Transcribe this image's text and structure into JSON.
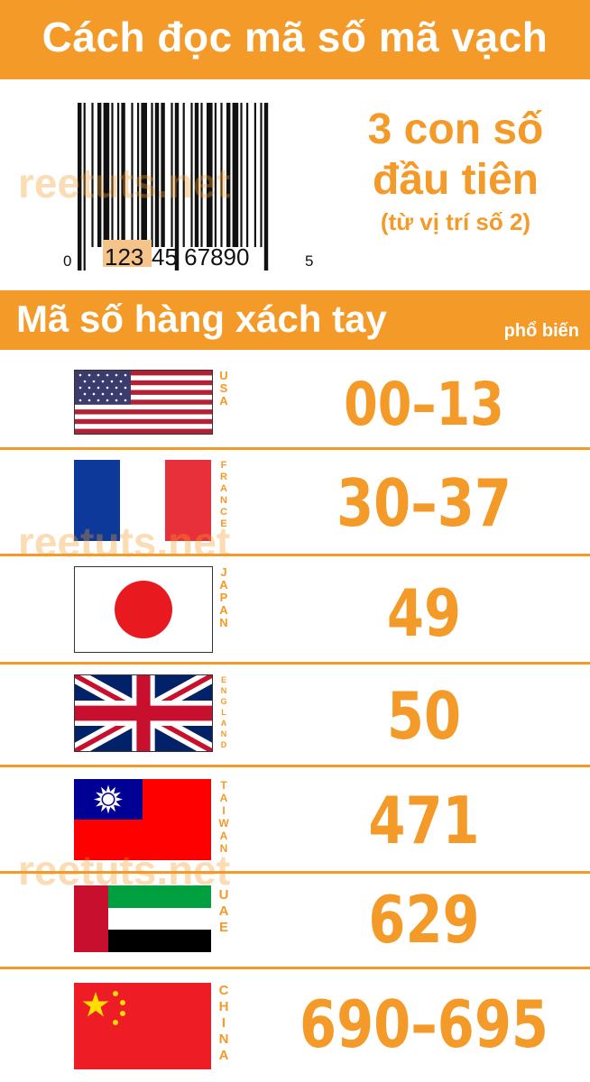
{
  "title": "Cách đọc mã số mã vạch",
  "barcode": {
    "left_digit": "0",
    "highlight": "123",
    "middle_digits": "45 67890",
    "right_digit": "5"
  },
  "headline": {
    "line1": "3 con số",
    "line2": "đầu tiên",
    "line3": "(từ vị trí số 2)"
  },
  "subheader": {
    "title": "Mã số hàng xách tay",
    "suffix": "phổ biến"
  },
  "watermark": "reetuts.net",
  "rows": [
    {
      "country": "USA",
      "code": "00–13"
    },
    {
      "country": "FRANCE",
      "code": "30–37"
    },
    {
      "country": "JAPAN",
      "code": "49"
    },
    {
      "country": "ENGLAND",
      "code": "50"
    },
    {
      "country": "TAIWAN",
      "code": "471"
    },
    {
      "country": "UAE",
      "code": "629"
    },
    {
      "country": "CHINA",
      "code": "690–695"
    }
  ],
  "colors": {
    "accent": "#f49a28"
  }
}
